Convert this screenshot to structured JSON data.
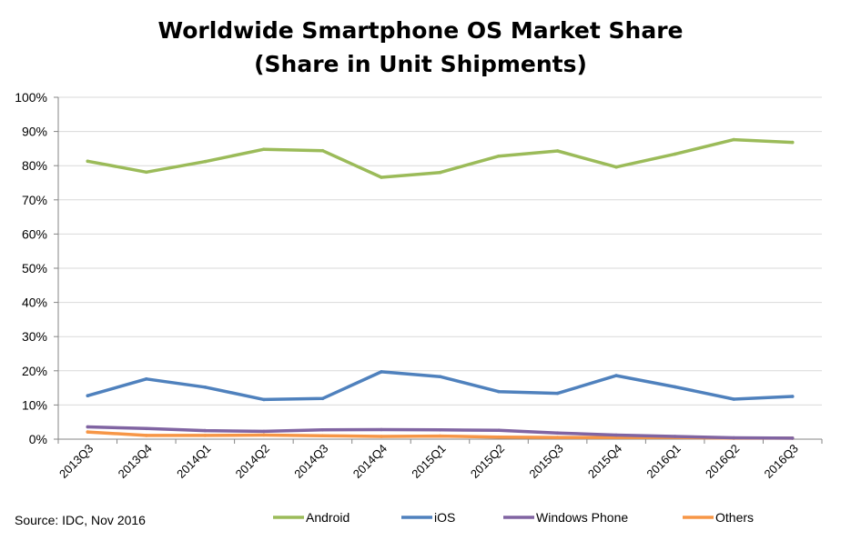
{
  "chart_data": {
    "type": "line",
    "title": "Worldwide Smartphone OS Market Share",
    "subtitle": "(Share in Unit Shipments)",
    "xlabel": "",
    "ylabel": "",
    "ylim": [
      0,
      100
    ],
    "y_ticks": [
      "0%",
      "10%",
      "20%",
      "30%",
      "40%",
      "50%",
      "60%",
      "70%",
      "80%",
      "90%",
      "100%"
    ],
    "grid": true,
    "legend_position": "bottom",
    "categories": [
      "2013Q3",
      "2013Q4",
      "2014Q1",
      "2014Q2",
      "2014Q3",
      "2014Q4",
      "2015Q1",
      "2015Q2",
      "2015Q3",
      "2015Q4",
      "2016Q1",
      "2016Q2",
      "2016Q3"
    ],
    "series": [
      {
        "name": "Android",
        "color": "#9bbb59",
        "values": [
          81.3,
          78.1,
          81.2,
          84.8,
          84.4,
          76.6,
          78.0,
          82.8,
          84.3,
          79.6,
          83.4,
          87.6,
          86.8
        ]
      },
      {
        "name": "iOS",
        "color": "#4f81bd",
        "values": [
          12.7,
          17.6,
          15.2,
          11.6,
          11.9,
          19.7,
          18.3,
          13.9,
          13.4,
          18.6,
          15.3,
          11.7,
          12.5
        ]
      },
      {
        "name": "Windows Phone",
        "color": "#8064a2",
        "values": [
          3.6,
          3.1,
          2.5,
          2.3,
          2.7,
          2.8,
          2.7,
          2.6,
          1.8,
          1.2,
          0.8,
          0.4,
          0.3
        ]
      },
      {
        "name": "Others",
        "color": "#f79646",
        "values": [
          2.1,
          1.1,
          1.1,
          1.2,
          1.0,
          0.8,
          0.9,
          0.6,
          0.5,
          0.5,
          0.5,
          0.3,
          0.3
        ]
      }
    ],
    "source": "Source: IDC, Nov 2016"
  },
  "colors": {
    "grid": "#d9d9d9",
    "axis": "#868686"
  }
}
